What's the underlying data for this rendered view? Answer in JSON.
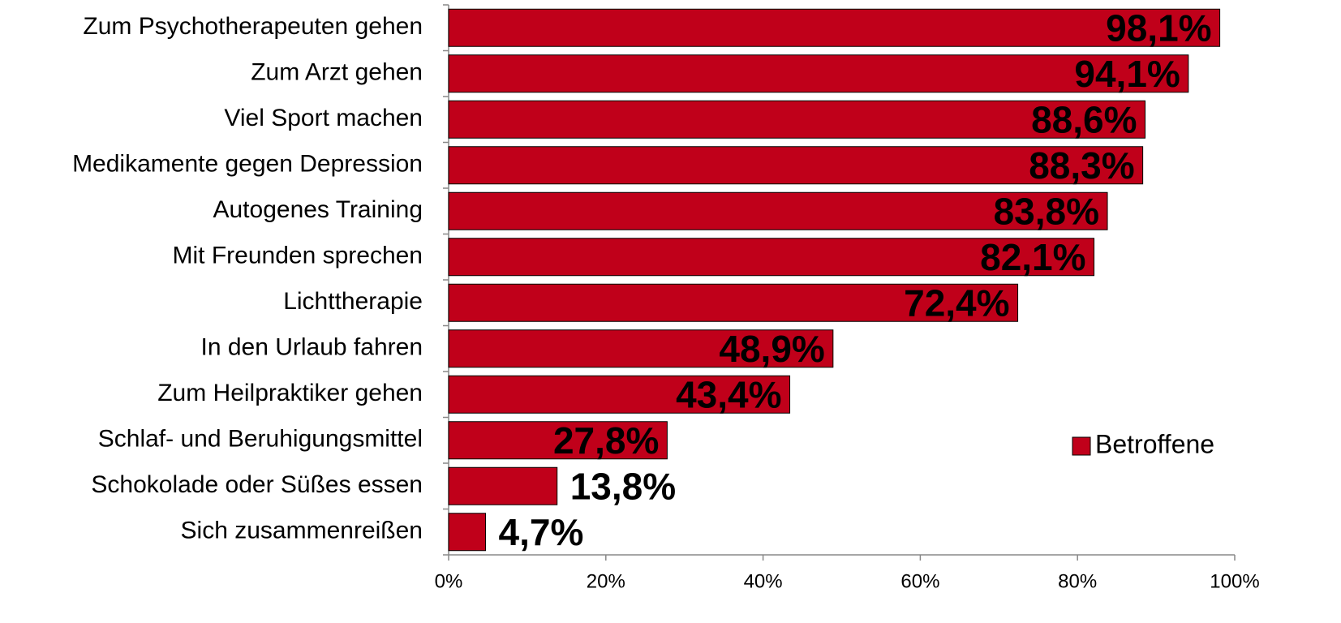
{
  "chart_data": {
    "type": "bar",
    "orientation": "horizontal",
    "categories": [
      "Zum Psychotherapeuten gehen",
      "Zum Arzt gehen",
      "Viel Sport machen",
      "Medikamente gegen Depression",
      "Autogenes Training",
      "Mit Freunden sprechen",
      "Lichttherapie",
      "In den Urlaub fahren",
      "Zum Heilpraktiker gehen",
      "Schlaf- und Beruhigungsmittel",
      "Schokolade oder Süßes essen",
      "Sich zusammenreißen"
    ],
    "series": [
      {
        "name": "Betroffene",
        "color": "#c0001a",
        "values": [
          98.1,
          94.1,
          88.6,
          88.3,
          83.8,
          82.1,
          72.4,
          48.9,
          43.4,
          27.8,
          13.8,
          4.7
        ],
        "value_labels": [
          "98,1%",
          "94,1%",
          "88,6%",
          "88,3%",
          "83,8%",
          "82,1%",
          "72,4%",
          "48,9%",
          "43,4%",
          "27,8%",
          "13,8%",
          "4,7%"
        ]
      }
    ],
    "xlim": [
      0,
      100
    ],
    "xticks": [
      {
        "value": 0,
        "label": "0%"
      },
      {
        "value": 20,
        "label": "20%"
      },
      {
        "value": 40,
        "label": "40%"
      },
      {
        "value": 60,
        "label": "60%"
      },
      {
        "value": 80,
        "label": "80%"
      },
      {
        "value": 100,
        "label": "100%"
      }
    ],
    "grid": false,
    "legend": "right"
  }
}
